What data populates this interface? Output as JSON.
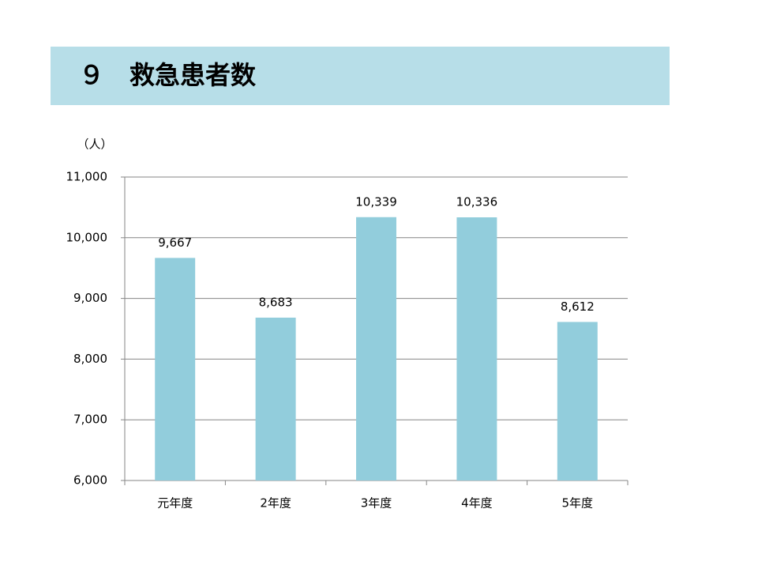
{
  "chart_data": {
    "type": "bar",
    "title": "９　救急患者数",
    "y_label": "（人）",
    "categories": [
      "元年度",
      "2年度",
      "3年度",
      "4年度",
      "5年度"
    ],
    "values": [
      9667,
      8683,
      10339,
      10336,
      8612
    ],
    "value_labels": [
      "9,667",
      "8,683",
      "10,339",
      "10,336",
      "8,612"
    ],
    "color": "#92cddc",
    "ylim": [
      6000,
      11000
    ],
    "yticks": [
      {
        "value": 6000,
        "label": "6,000"
      },
      {
        "value": 7000,
        "label": "7,000"
      },
      {
        "value": 8000,
        "label": "8,000"
      },
      {
        "value": 9000,
        "label": "9,000"
      },
      {
        "value": 10000,
        "label": "10,000"
      },
      {
        "value": 11000,
        "label": "11,000"
      }
    ],
    "grid": true
  }
}
